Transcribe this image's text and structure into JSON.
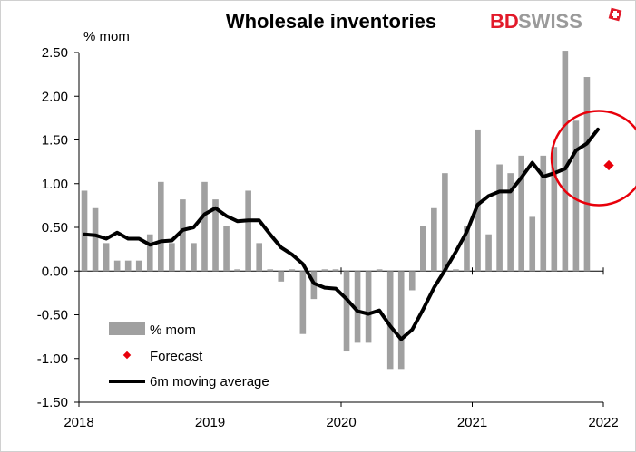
{
  "logo": {
    "part1": "BD",
    "part2": "SWISS"
  },
  "chart_data": {
    "type": "bar",
    "title": "Wholesale inventories",
    "ylabel": "% mom",
    "ylim": [
      -1.5,
      2.5
    ],
    "yticks": [
      2.5,
      2.0,
      1.5,
      1.0,
      0.5,
      0.0,
      -0.5,
      -1.0,
      -1.5
    ],
    "ytick_labels": [
      "2.50",
      "2.00",
      "1.50",
      "1.00",
      "0.50",
      "0.00",
      "-0.50",
      "-1.00",
      "-1.50"
    ],
    "x_labels": [
      "2018",
      "2019",
      "2020",
      "2021",
      "2022"
    ],
    "start": "2018-01",
    "months": [
      "2018-01",
      "2018-02",
      "2018-03",
      "2018-04",
      "2018-05",
      "2018-06",
      "2018-07",
      "2018-08",
      "2018-09",
      "2018-10",
      "2018-11",
      "2018-12",
      "2019-01",
      "2019-02",
      "2019-03",
      "2019-04",
      "2019-05",
      "2019-06",
      "2019-07",
      "2019-08",
      "2019-09",
      "2019-10",
      "2019-11",
      "2019-12",
      "2020-01",
      "2020-02",
      "2020-03",
      "2020-04",
      "2020-05",
      "2020-06",
      "2020-07",
      "2020-08",
      "2020-09",
      "2020-10",
      "2020-11",
      "2020-12",
      "2021-01",
      "2021-02",
      "2021-03",
      "2021-04",
      "2021-05",
      "2021-06",
      "2021-07",
      "2021-08",
      "2021-09",
      "2021-10",
      "2021-11",
      "2021-12"
    ],
    "series": [
      {
        "name": "% mom",
        "kind": "bar",
        "color": "#a0a0a0",
        "values": [
          0.92,
          0.72,
          0.32,
          0.12,
          0.12,
          0.12,
          0.42,
          1.02,
          0.32,
          0.82,
          0.32,
          1.02,
          0.82,
          0.52,
          0.02,
          0.92,
          0.32,
          0.02,
          -0.12,
          0.02,
          -0.72,
          -0.32,
          0.02,
          0.02,
          -0.92,
          -0.82,
          -0.82,
          0.02,
          -1.12,
          -1.12,
          -0.22,
          0.52,
          0.72,
          1.12,
          0.02,
          0.52,
          1.62,
          0.42,
          1.22,
          1.12,
          1.32,
          0.62,
          1.32,
          1.42,
          2.52,
          1.72,
          2.22,
          null
        ]
      },
      {
        "name": "6m moving average",
        "kind": "line",
        "color": "#000000",
        "values": [
          0.42,
          0.41,
          0.37,
          0.44,
          0.37,
          0.37,
          0.3,
          0.34,
          0.35,
          0.47,
          0.5,
          0.65,
          0.72,
          0.63,
          0.57,
          0.58,
          0.58,
          0.42,
          0.27,
          0.19,
          0.08,
          -0.14,
          -0.19,
          -0.2,
          -0.32,
          -0.46,
          -0.49,
          -0.45,
          -0.63,
          -0.78,
          -0.67,
          -0.44,
          -0.19,
          0.01,
          0.22,
          0.45,
          0.76,
          0.86,
          0.91,
          0.91,
          1.07,
          1.24,
          1.08,
          1.12,
          1.17,
          1.38,
          1.46,
          1.62
        ]
      },
      {
        "name": "Forecast",
        "kind": "point",
        "color": "#e8000b",
        "x": "2022-01",
        "value": 1.21
      }
    ],
    "annotation": {
      "shape": "circle",
      "color": "#e8000b",
      "around": "late 2021 / 2022 forecast"
    },
    "legend": {
      "position": "bottom-left",
      "entries": [
        "% mom",
        "Forecast",
        "6m moving average"
      ]
    },
    "grid": false
  }
}
